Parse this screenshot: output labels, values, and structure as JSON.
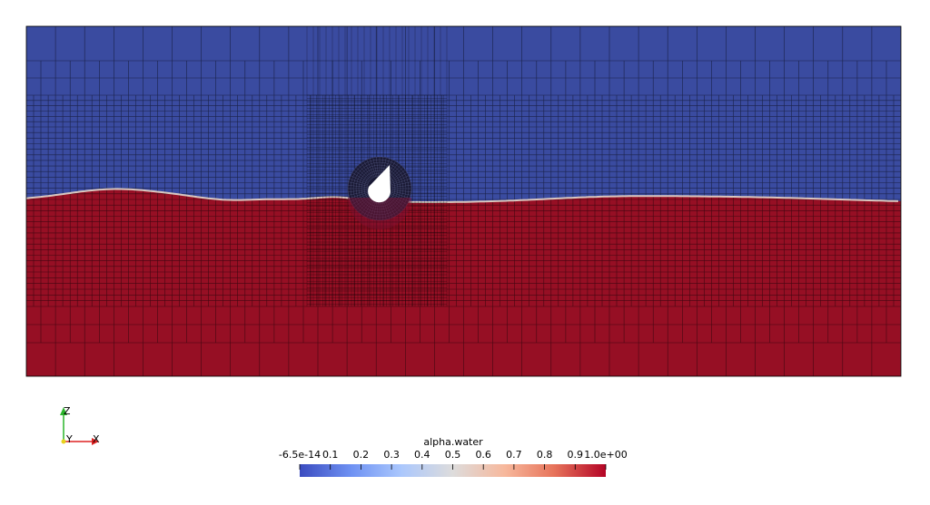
{
  "orientation_axes": {
    "z_label": "Z",
    "y_label": "Y",
    "x_label": "X"
  },
  "colorbar": {
    "title": "alpha.water",
    "range": [
      -6.5e-14,
      1.0
    ],
    "tick_labels": [
      "-6.5e-14",
      "0.1",
      "0.2",
      "0.3",
      "0.4",
      "0.5",
      "0.6",
      "0.7",
      "0.8",
      "0.9",
      "1.0e+00"
    ],
    "tick_values": [
      0,
      0.1,
      0.2,
      0.3,
      0.4,
      0.5,
      0.6,
      0.7,
      0.8,
      0.9,
      1.0
    ],
    "colormap": [
      "#3b4cc0",
      "#7b9ff9",
      "#c0d4f5",
      "#dddcdc",
      "#f2cbb7",
      "#ee8468",
      "#b40426"
    ]
  },
  "field": {
    "air_color": "#3a4ba0",
    "water_color": "#960f24",
    "mesh_line_color": "#000000",
    "interface_color": "#d9c8c0",
    "body_color": "#ffffff"
  }
}
